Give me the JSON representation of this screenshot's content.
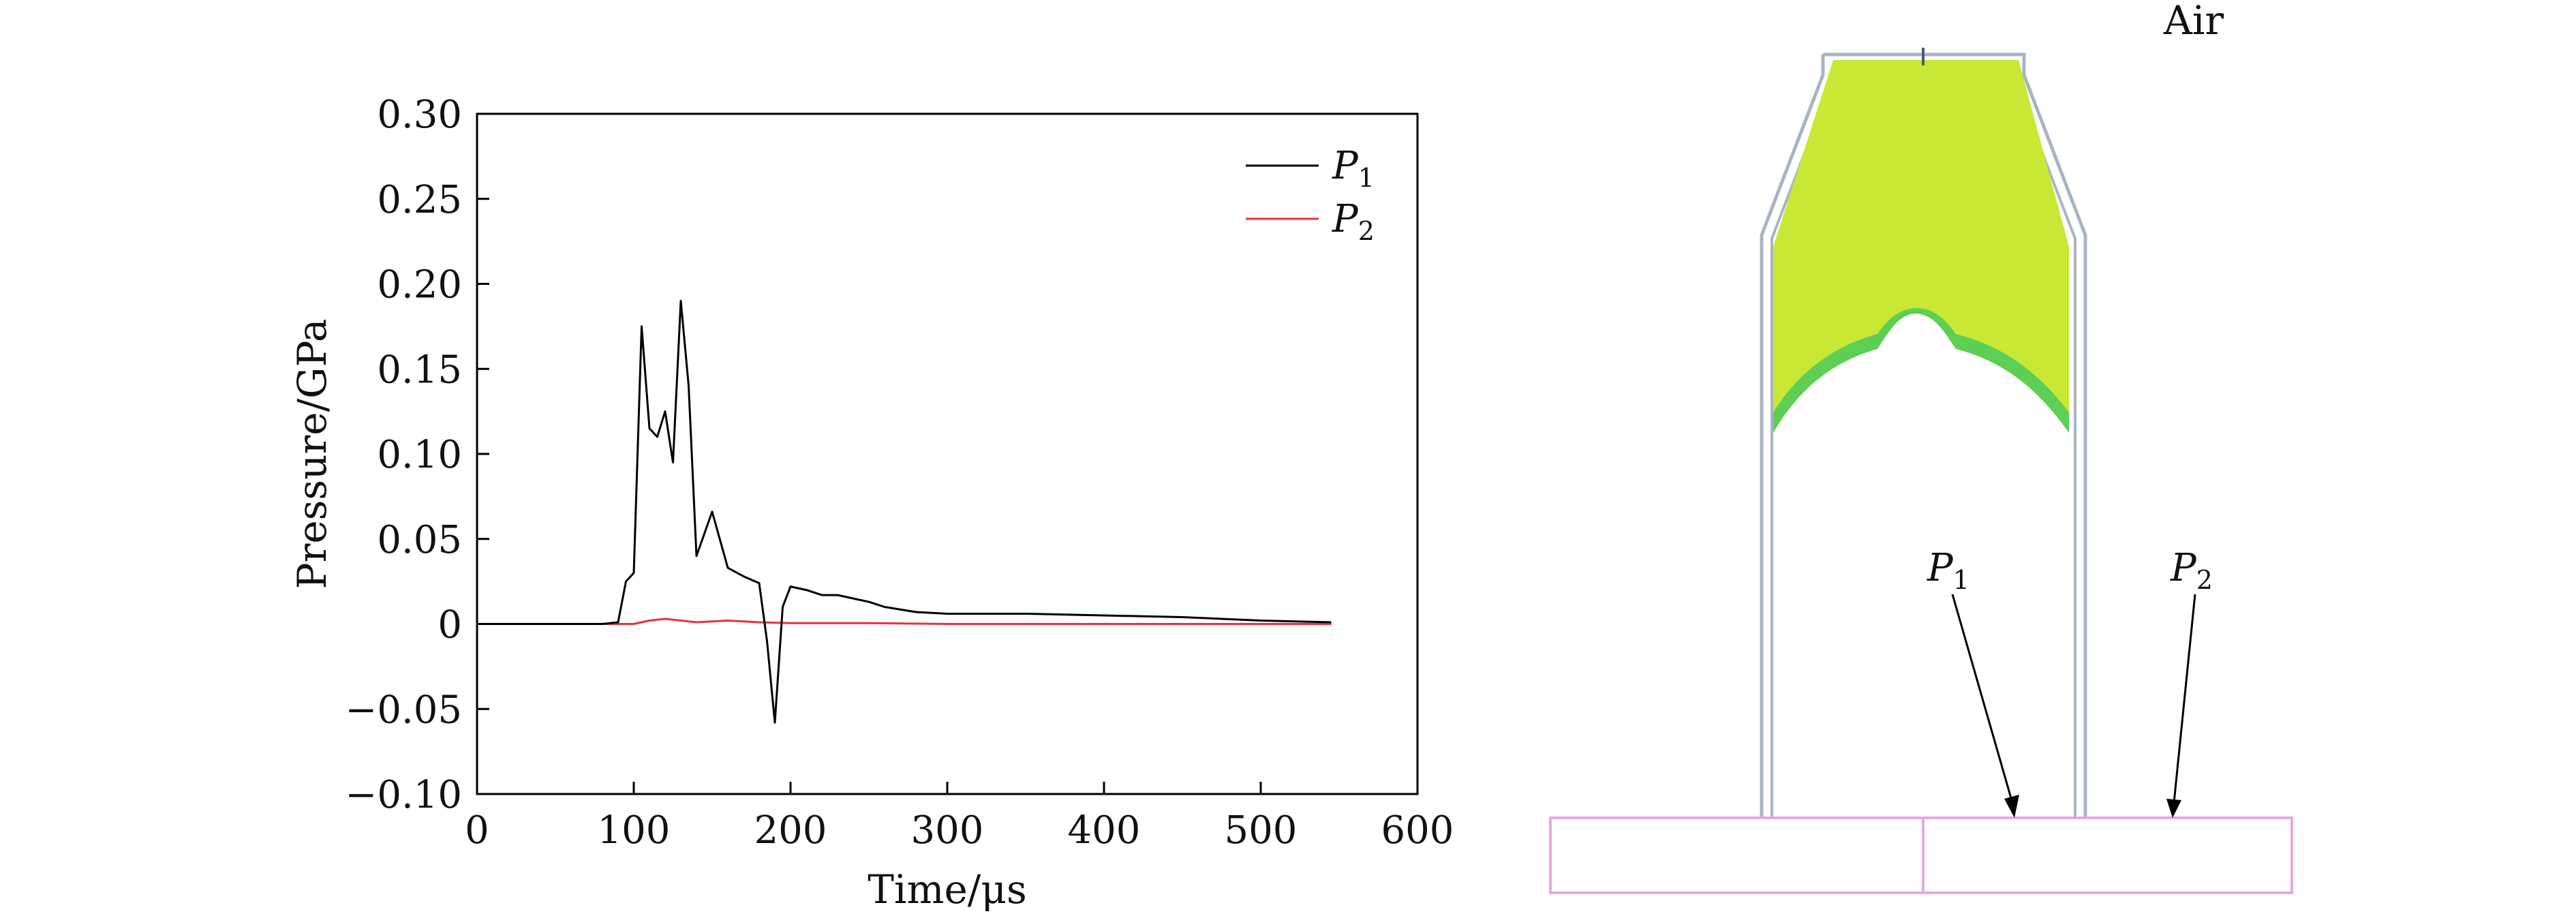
{
  "chart_data": {
    "type": "line",
    "title": "",
    "xlabel": "Time/μs",
    "ylabel": "Pressure/GPa",
    "xlim": [
      0,
      600
    ],
    "ylim": [
      -0.1,
      0.3
    ],
    "x_ticks": [
      0,
      100,
      200,
      300,
      400,
      500,
      600
    ],
    "x_tick_labels": [
      "0",
      "100",
      "200",
      "300",
      "400",
      "500",
      "600"
    ],
    "y_ticks": [
      -0.1,
      -0.05,
      0,
      0.05,
      0.1,
      0.15,
      0.2,
      0.25,
      0.3
    ],
    "y_tick_labels": [
      "−0.10",
      "−0.05",
      "0",
      "0.05",
      "0.10",
      "0.15",
      "0.20",
      "0.25",
      "0.30"
    ],
    "grid": false,
    "legend": "top-right",
    "series": [
      {
        "name": "P1",
        "label_main": "P",
        "label_sub": "1",
        "color": "#000000",
        "x": [
          0,
          80,
          90,
          95,
          100,
          105,
          110,
          115,
          120,
          125,
          130,
          135,
          140,
          150,
          160,
          170,
          180,
          185,
          190,
          195,
          200,
          210,
          220,
          230,
          240,
          250,
          260,
          280,
          300,
          350,
          400,
          450,
          500,
          545
        ],
        "y": [
          0,
          0,
          0.001,
          0.025,
          0.03,
          0.175,
          0.115,
          0.11,
          0.125,
          0.095,
          0.19,
          0.14,
          0.04,
          0.066,
          0.033,
          0.028,
          0.024,
          -0.01,
          -0.058,
          0.01,
          0.022,
          0.02,
          0.017,
          0.017,
          0.015,
          0.013,
          0.01,
          0.007,
          0.006,
          0.006,
          0.005,
          0.004,
          0.002,
          0.001
        ]
      },
      {
        "name": "P2",
        "label_main": "P",
        "label_sub": "2",
        "color": "#e8323c",
        "x": [
          0,
          100,
          110,
          120,
          140,
          160,
          180,
          200,
          250,
          300,
          400,
          500,
          545
        ],
        "y": [
          0,
          0,
          0.002,
          0.003,
          0.001,
          0.002,
          0.001,
          0.0005,
          0.0005,
          0,
          0,
          0,
          0
        ]
      }
    ]
  },
  "diagram": {
    "air_label": "Air",
    "probe_labels": [
      {
        "main": "P",
        "sub": "1"
      },
      {
        "main": "P",
        "sub": "2"
      }
    ],
    "colors": {
      "charge": "#c8e835",
      "liner": "#5ecf55",
      "casing": "#a9b4c2",
      "target": "#e8a8e0"
    }
  }
}
